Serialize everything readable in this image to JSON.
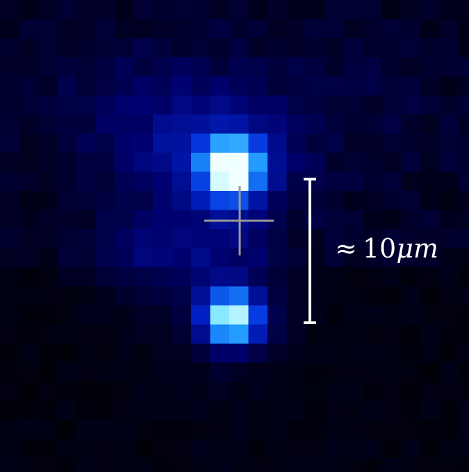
{
  "image": {
    "description_type": "false-color microscopy image of two blue light spots",
    "colors": {
      "background": "#000000",
      "dark_blue": "#000a50",
      "mid_blue": "#0022c0",
      "bright_blue": "#1a78ff",
      "cyan": "#66d9ff",
      "white_core": "#e8fbff",
      "crosshair": "#9a9a9a",
      "scale_bar": "#ffffff"
    }
  },
  "scale_bar": {
    "approx_symbol": "≈",
    "value": "10",
    "unit": "μm"
  }
}
